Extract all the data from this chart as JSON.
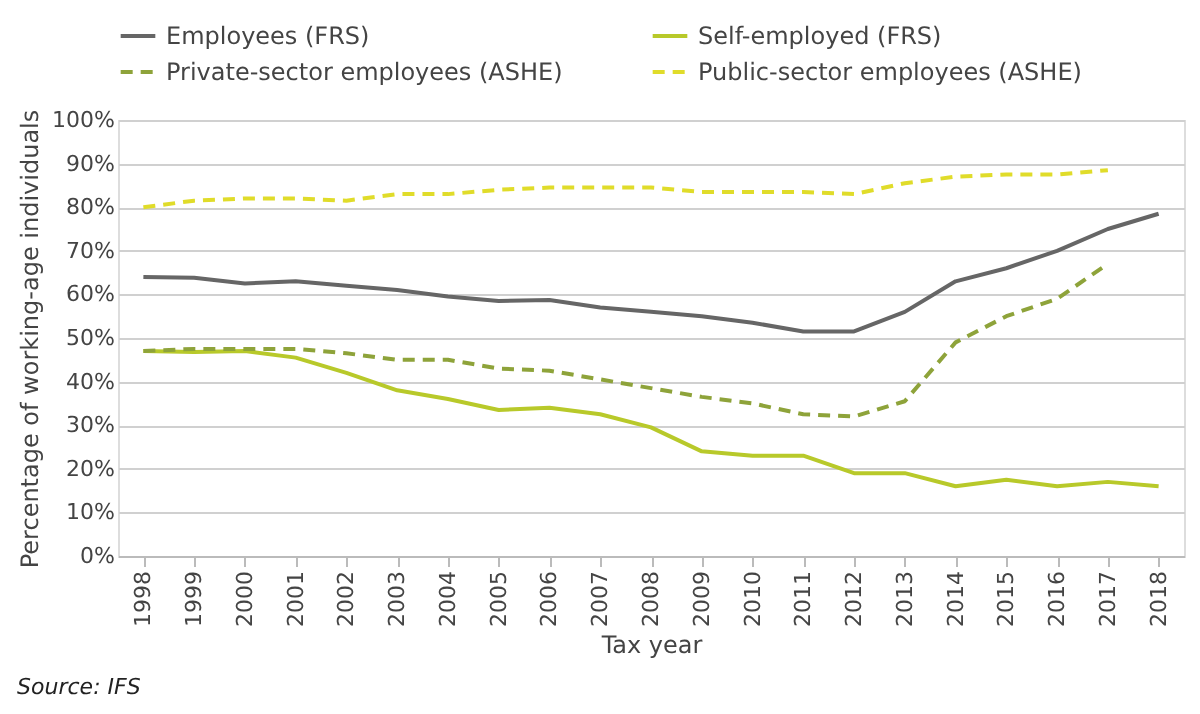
{
  "chart_data": {
    "type": "line",
    "categories": [
      "1998",
      "1999",
      "2000",
      "2001",
      "2002",
      "2003",
      "2004",
      "2005",
      "2006",
      "2007",
      "2008",
      "2009",
      "2010",
      "2011",
      "2012",
      "2013",
      "2014",
      "2015",
      "2016",
      "2017",
      "2018"
    ],
    "xlabel": "Tax year",
    "ylabel": "Percentage of working-age individuals",
    "ylim": [
      0,
      100
    ],
    "yticks": [
      {
        "value": 0,
        "label": "0%"
      },
      {
        "value": 10,
        "label": "10%"
      },
      {
        "value": 20,
        "label": "20%"
      },
      {
        "value": 30,
        "label": "30%"
      },
      {
        "value": 40,
        "label": "40%"
      },
      {
        "value": 50,
        "label": "50%"
      },
      {
        "value": 60,
        "label": "60%"
      },
      {
        "value": 70,
        "label": "70%"
      },
      {
        "value": 80,
        "label": "80%"
      },
      {
        "value": 90,
        "label": "90%"
      },
      {
        "value": 100,
        "label": "100%"
      }
    ],
    "grid": "y",
    "legend": "top",
    "series": [
      {
        "name": "Employees (FRS)",
        "color": "#666666",
        "line_style": "solid",
        "values": [
          64,
          63.8,
          62.5,
          63,
          62,
          61,
          59.5,
          58.5,
          58.7,
          57,
          56,
          55,
          53.5,
          51.5,
          51.5,
          56,
          63,
          66,
          70,
          75,
          78.5
        ]
      },
      {
        "name": "Self-employed (FRS)",
        "color": "#b8c92a",
        "line_style": "solid",
        "values": [
          47,
          46.8,
          47,
          45.5,
          42,
          38,
          36,
          33.5,
          34,
          32.5,
          29.5,
          24,
          23,
          23,
          19,
          19,
          16,
          17.5,
          16,
          17,
          16
        ]
      },
      {
        "name": "Private-sector employees (ASHE)",
        "color": "#8ea33a",
        "line_style": "dashed",
        "values": [
          47,
          47.5,
          47.5,
          47.5,
          46.5,
          45,
          45,
          43,
          42.5,
          40.5,
          38.5,
          36.5,
          35,
          32.5,
          32,
          35.5,
          49,
          55,
          59,
          67,
          null
        ]
      },
      {
        "name": "Public-sector employees (ASHE)",
        "color": "#e0dc2a",
        "line_style": "dashed",
        "values": [
          80,
          81.5,
          82,
          82,
          81.5,
          83,
          83,
          84,
          84.5,
          84.5,
          84.5,
          83.5,
          83.5,
          83.5,
          83,
          85.5,
          87,
          87.5,
          87.5,
          88.5,
          null
        ]
      }
    ],
    "annotations": [
      "Source: IFS"
    ]
  }
}
